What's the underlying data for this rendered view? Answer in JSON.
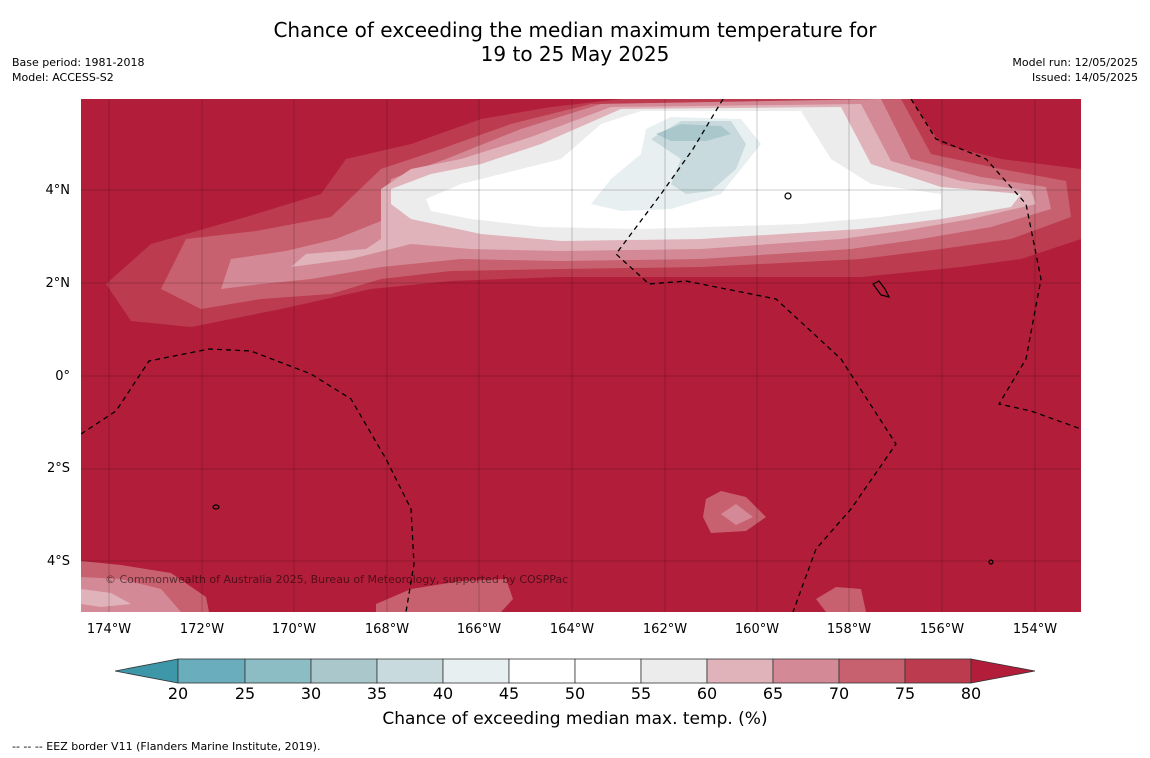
{
  "header": {
    "title_line1": "Chance of exceeding the median maximum temperature for",
    "title_line2": "19 to 25 May 2025",
    "base_period": "Base period: 1981-2018",
    "model": "Model: ACCESS-S2",
    "model_run": "Model run: 12/05/2025",
    "issued": "Issued: 14/05/2025"
  },
  "map": {
    "copyright": "© Commonwealth of Australia 2025, Bureau of Meteorology, supported by COSPPac",
    "lat_labels": [
      "4°N",
      "2°N",
      "0°",
      "2°S",
      "4°S"
    ],
    "lon_labels": [
      "174°W",
      "172°W",
      "170°W",
      "168°W",
      "166°W",
      "164°W",
      "162°W",
      "160°W",
      "158°W",
      "156°W",
      "154°W"
    ],
    "background_color": "#b21e3a"
  },
  "colorbar": {
    "title": "Chance of exceeding median max. temp. (%)",
    "ticks": [
      "20",
      "25",
      "30",
      "35",
      "40",
      "45",
      "50",
      "55",
      "60",
      "65",
      "70",
      "75",
      "80"
    ],
    "colors": [
      "#3d97a8",
      "#6aaebe",
      "#8cbcc4",
      "#aac8cc",
      "#c8dadd",
      "#e8eff0",
      "#ffffff",
      "#ffffff",
      "#ececec",
      "#e0b3bb",
      "#d48a96",
      "#c8616f",
      "#bc3b4e",
      "#b21e3a"
    ]
  },
  "footnote": "--  --  -- EEZ border V11 (Flanders Marine Institute, 2019)."
}
